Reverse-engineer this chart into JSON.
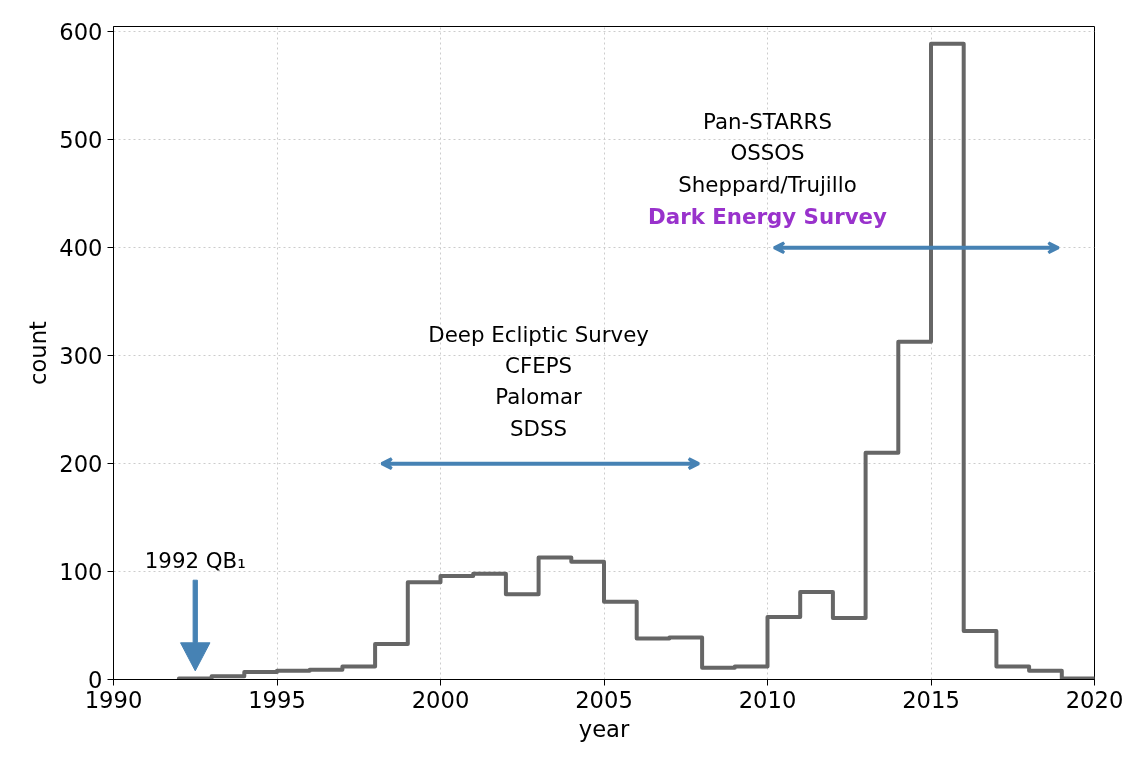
{
  "chart_data": {
    "type": "histogram",
    "xlabel": "year",
    "ylabel": "count",
    "bins": [
      1992,
      1993,
      1994,
      1995,
      1996,
      1997,
      1998,
      1999,
      2000,
      2001,
      2002,
      2003,
      2004,
      2005,
      2006,
      2007,
      2008,
      2009,
      2010,
      2011,
      2012,
      2013,
      2014,
      2015,
      2016,
      2017,
      2018,
      2019,
      2020
    ],
    "values": [
      1,
      3,
      7,
      8,
      9,
      12,
      33,
      90,
      96,
      98,
      79,
      113,
      109,
      72,
      38,
      39,
      11,
      12,
      58,
      81,
      57,
      210,
      313,
      589,
      45,
      12,
      8,
      1
    ],
    "color": "#666666",
    "xlim": [
      1990,
      2020
    ],
    "ylim": [
      0,
      605
    ],
    "xticks": [
      1990,
      1995,
      2000,
      2005,
      2010,
      2015,
      2020
    ],
    "yticks": [
      0,
      100,
      200,
      300,
      400,
      500,
      600
    ],
    "grid": true,
    "annotations": [
      "1992 QB₁",
      "Deep Ecliptic Survey\nCFEPS\nPalomar\nSDSS",
      "Pan-STARRS\nOSSOS\nSheppard/Trujillo",
      "Dark Energy Survey"
    ]
  }
}
